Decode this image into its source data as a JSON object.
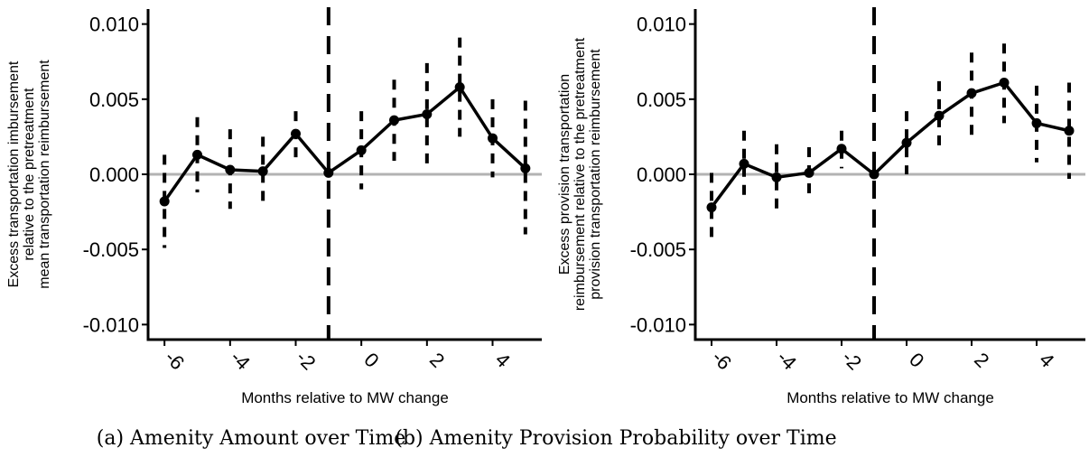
{
  "chart_data": [
    {
      "type": "line",
      "caption": "(a) Amenity Amount over Time",
      "xlabel": "Months relative to MW change",
      "ylabel": [
        "Excess transportation imbursement",
        "relative to the pretreatment",
        "mean transportation reimbursement"
      ],
      "xlim": [
        -6.5,
        5.5
      ],
      "ylim": [
        -0.011,
        0.011
      ],
      "x_ticks": [
        -6,
        -4,
        -2,
        0,
        2,
        4
      ],
      "y_ticks": [
        -0.01,
        -0.005,
        0.0,
        0.005,
        0.01
      ],
      "x_tick_labels": [
        "-6",
        "-4",
        "-2",
        "0",
        "2",
        "4"
      ],
      "y_tick_labels": [
        "-0.010",
        "-0.005",
        "0.000",
        "0.005",
        "0.010"
      ],
      "reference_hline": 0.0,
      "reference_vline": -1,
      "x": [
        -6,
        -5,
        -4,
        -3,
        -2,
        -1,
        0,
        1,
        2,
        3,
        4,
        5
      ],
      "y": [
        -0.0018,
        0.0013,
        0.0003,
        0.0002,
        0.0027,
        0.0001,
        0.0016,
        0.0036,
        0.004,
        0.0058,
        0.0024,
        0.0004
      ],
      "ci_low": [
        -0.0049,
        -0.0012,
        -0.0023,
        -0.0021,
        0.001,
        0.0001,
        -0.001,
        0.0009,
        0.0007,
        0.0025,
        -0.0002,
        -0.004
      ],
      "ci_high": [
        0.0013,
        0.0038,
        0.003,
        0.0025,
        0.0042,
        0.0001,
        0.0042,
        0.0063,
        0.0074,
        0.0091,
        0.005,
        0.0049
      ]
    },
    {
      "type": "line",
      "caption": "(b) Amenity Provision Probability over Time",
      "xlabel": "Months relative to MW change",
      "ylabel": [
        "Excess provision transportation",
        "reimbursement relative to the pretreatment",
        "provision transportation reimbursement"
      ],
      "xlim": [
        -6.5,
        5.5
      ],
      "ylim": [
        -0.011,
        0.011
      ],
      "x_ticks": [
        -6,
        -4,
        -2,
        0,
        2,
        4
      ],
      "y_ticks": [
        -0.01,
        -0.005,
        0.0,
        0.005,
        0.01
      ],
      "x_tick_labels": [
        "-6",
        "-4",
        "-2",
        "0",
        "2",
        "4"
      ],
      "y_tick_labels": [
        "-0.010",
        "-0.005",
        "0.000",
        "0.005",
        "0.010"
      ],
      "reference_hline": 0.0,
      "reference_vline": -1,
      "x": [
        -6,
        -5,
        -4,
        -3,
        -2,
        -1,
        0,
        1,
        2,
        3,
        4,
        5
      ],
      "y": [
        -0.0022,
        0.0007,
        -0.0002,
        0.0001,
        0.0017,
        0.0,
        0.0021,
        0.0039,
        0.0054,
        0.0061,
        0.0034,
        0.0029
      ],
      "ci_low": [
        -0.0044,
        -0.0015,
        -0.0024,
        -0.0016,
        0.0004,
        0.0,
        0.0,
        0.0016,
        0.0026,
        0.0034,
        0.0008,
        -0.0003
      ],
      "ci_high": [
        0.0001,
        0.0029,
        0.002,
        0.0018,
        0.0029,
        0.0,
        0.0042,
        0.0062,
        0.0081,
        0.0087,
        0.0059,
        0.0061
      ]
    }
  ]
}
